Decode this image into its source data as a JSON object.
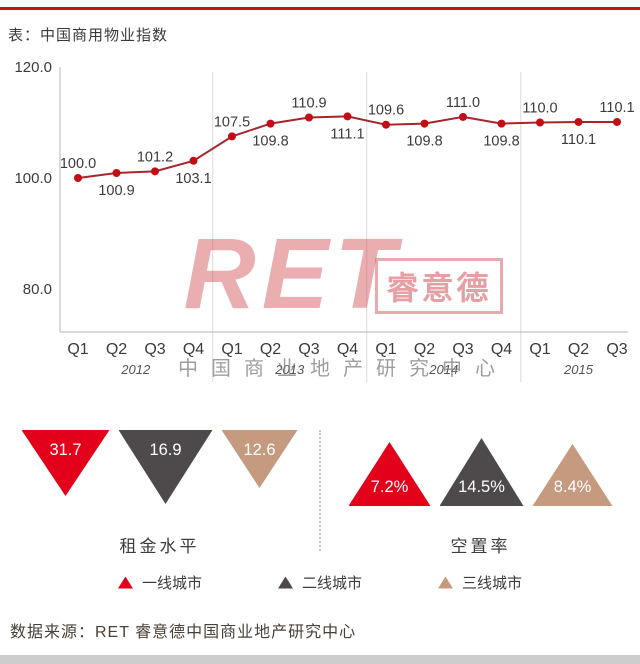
{
  "header": {
    "title": "表：中国商用物业指数"
  },
  "watermark": {
    "brand": "RET",
    "badge": "睿意德",
    "subtitle": "中国商业地产研究中心"
  },
  "chart_data": {
    "type": "line",
    "title": "中国商用物业指数",
    "xlabel": "",
    "ylabel": "",
    "x": [
      "Q1",
      "Q2",
      "Q3",
      "Q4",
      "Q1",
      "Q2",
      "Q3",
      "Q4",
      "Q1",
      "Q2",
      "Q3",
      "Q4",
      "Q1",
      "Q2",
      "Q3"
    ],
    "year_groups": [
      {
        "label": "2012",
        "span": 4
      },
      {
        "label": "2013",
        "span": 4
      },
      {
        "label": "2014",
        "span": 4
      },
      {
        "label": "2015",
        "span": 3
      }
    ],
    "series": [
      {
        "name": "中国商用物业指数",
        "values": [
          100.0,
          100.9,
          101.2,
          103.1,
          107.5,
          109.8,
          110.9,
          111.1,
          109.6,
          109.8,
          111.0,
          109.8,
          110.0,
          110.1,
          110.1
        ]
      }
    ],
    "ylim": [
      80,
      120
    ],
    "yticks": [
      120.0,
      100.0,
      80.0
    ],
    "grid": "year-separators-only",
    "legend_position": "none",
    "line_color": "#a6262c",
    "point_color": "#c20d15"
  },
  "panels": {
    "rent": {
      "label": "租金水平",
      "direction": "down",
      "items": [
        {
          "city": "一线城市",
          "value": "31.7",
          "color": "#e3001b"
        },
        {
          "city": "二线城市",
          "value": "16.9",
          "color": "#4e4a4b"
        },
        {
          "city": "三线城市",
          "value": "12.6",
          "color": "#c59a7e"
        }
      ]
    },
    "vacancy": {
      "label": "空置率",
      "direction": "up",
      "items": [
        {
          "city": "一线城市",
          "value": "7.2%",
          "color": "#e3001b"
        },
        {
          "city": "二线城市",
          "value": "14.5%",
          "color": "#4e4a4b"
        },
        {
          "city": "三线城市",
          "value": "8.4%",
          "color": "#c59a7e"
        }
      ]
    }
  },
  "legend": {
    "items": [
      {
        "label": "一线城市",
        "color": "#e3001b"
      },
      {
        "label": "二线城市",
        "color": "#4e4a4b"
      },
      {
        "label": "三线城市",
        "color": "#c59a7e"
      }
    ]
  },
  "footer": {
    "source": "数据来源：RET 睿意德中国商业地产研究中心"
  },
  "colors": {
    "accent_red": "#cc1017",
    "text_dark": "#3c3c3c"
  }
}
